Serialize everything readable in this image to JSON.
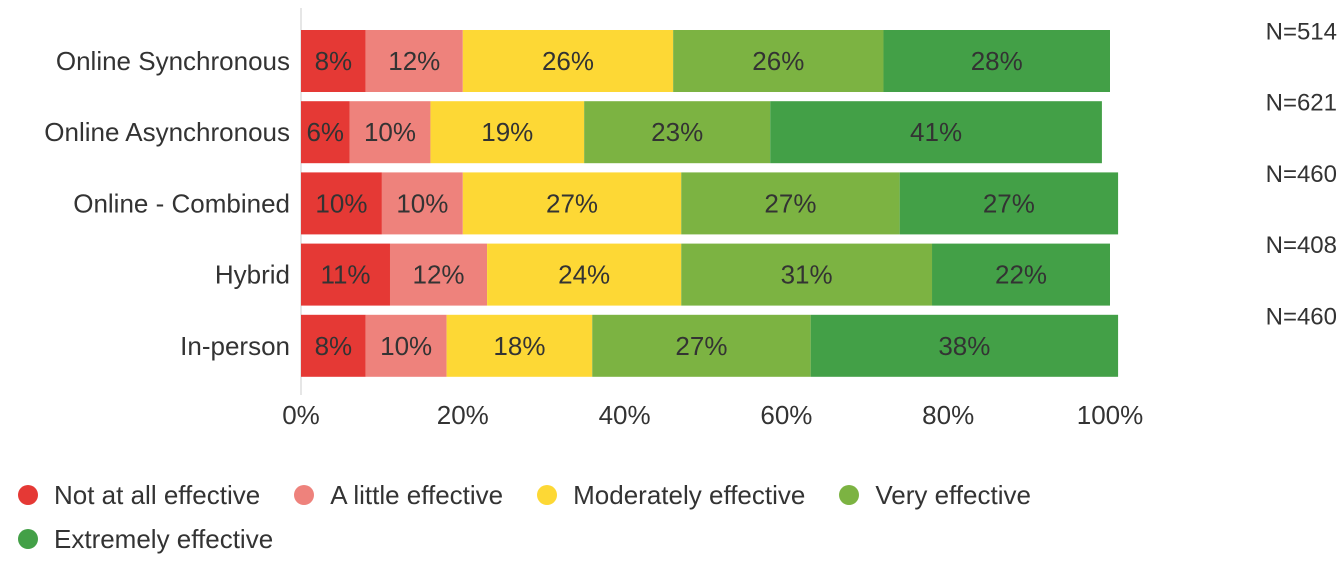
{
  "chart_data": {
    "type": "bar",
    "orientation": "horizontal",
    "stacked": true,
    "percent_scale": true,
    "categories": [
      "Online Synchronous",
      "Online Asynchronous",
      "Online - Combined",
      "Hybrid",
      "In-person"
    ],
    "series": [
      {
        "name": "Not at all effective",
        "color": "#e53935",
        "values": [
          8,
          6,
          10,
          11,
          8
        ]
      },
      {
        "name": "A little effective",
        "color": "#ee827c",
        "values": [
          12,
          10,
          10,
          12,
          10
        ]
      },
      {
        "name": "Moderately effective",
        "color": "#fdd835",
        "values": [
          26,
          19,
          27,
          24,
          18
        ]
      },
      {
        "name": "Very effective",
        "color": "#7cb342",
        "values": [
          26,
          23,
          27,
          31,
          27
        ]
      },
      {
        "name": "Extremely effective",
        "color": "#43a047",
        "values": [
          28,
          41,
          27,
          22,
          38
        ]
      }
    ],
    "sample_sizes": [
      "N=514",
      "N=621",
      "N=460",
      "N=408",
      "N=460"
    ],
    "xlim": [
      0,
      100
    ],
    "xticks": [
      "0%",
      "20%",
      "40%",
      "60%",
      "80%",
      "100%"
    ],
    "title": "",
    "xlabel": "",
    "ylabel": "",
    "legend": "bottom",
    "grid": false
  }
}
